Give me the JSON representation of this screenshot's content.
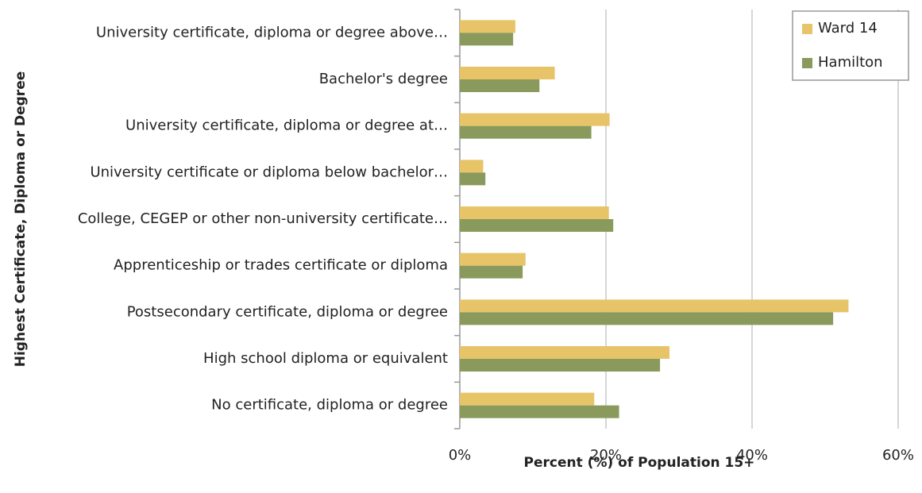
{
  "chart_data": {
    "type": "bar",
    "orientation": "horizontal",
    "x_label": "Percent (%) of Population 15+",
    "y_label": "Highest Certificate, Diploma or Degree",
    "categories": [
      "University certificate, diploma or degree above…",
      "Bachelor's degree",
      "University certificate, diploma or degree at…",
      "University certificate or diploma below bachelor…",
      "College, CEGEP or other non-university certificate…",
      "Apprenticeship or trades certificate or diploma",
      "Postsecondary certificate, diploma or degree",
      "High school diploma or equivalent",
      "No certificate, diploma or degree"
    ],
    "series": [
      {
        "name": "Ward 14",
        "color": "#e8c469",
        "values": [
          7.6,
          13.0,
          20.5,
          3.2,
          20.4,
          9.0,
          53.2,
          28.7,
          18.4
        ]
      },
      {
        "name": "Hamilton",
        "color": "#899a5c",
        "values": [
          7.3,
          10.9,
          18.0,
          3.5,
          21.0,
          8.6,
          51.1,
          27.4,
          21.8
        ]
      }
    ],
    "xlim": [
      0,
      60
    ],
    "xticks": [
      {
        "value": 0,
        "label": "0%"
      },
      {
        "value": 20,
        "label": "20%"
      },
      {
        "value": 40,
        "label": "40%"
      },
      {
        "value": 60,
        "label": "60%"
      }
    ],
    "grid": true,
    "legend": "upper right"
  }
}
